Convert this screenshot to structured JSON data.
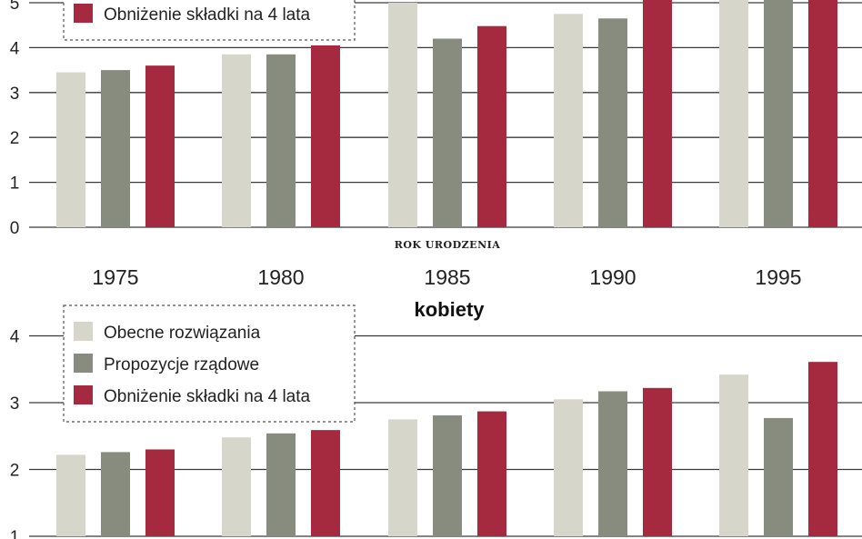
{
  "chart_data": [
    {
      "type": "bar",
      "title": "",
      "xlabel": "ROK URODZENIA",
      "ylabel": "",
      "categories": [
        "1975",
        "1980",
        "1985",
        "1990",
        "1995"
      ],
      "ylim": [
        0,
        5
      ],
      "yticks": [
        0,
        1,
        2,
        3,
        4,
        5
      ],
      "grid": true,
      "legend_position": "top-left",
      "series": [
        {
          "name": "Obecne rozwiązania",
          "color": "#d6d6cb",
          "values": [
            3.45,
            3.85,
            5.0,
            4.75,
            5.2
          ]
        },
        {
          "name": "Propozycje rządowe",
          "color": "#878c7e",
          "values": [
            3.5,
            3.85,
            4.2,
            4.65,
            5.2
          ]
        },
        {
          "name": "Obniżenie składki na 4 lata",
          "color": "#a52a40",
          "values": [
            3.6,
            4.05,
            4.48,
            5.1,
            5.2
          ]
        }
      ],
      "legend_visible": [
        "Obniżenie składki na 4 lata"
      ]
    },
    {
      "type": "bar",
      "title": "kobiety",
      "xlabel": "",
      "ylabel": "",
      "categories": [
        "1975",
        "1980",
        "1985",
        "1990",
        "1995"
      ],
      "ylim": [
        1,
        4
      ],
      "yticks": [
        1,
        2,
        3,
        4
      ],
      "grid": true,
      "legend_position": "top-left",
      "series": [
        {
          "name": "Obecne rozwiązania",
          "color": "#d6d6cb",
          "values": [
            2.22,
            2.48,
            2.75,
            3.05,
            3.42
          ]
        },
        {
          "name": "Propozycje rządowe",
          "color": "#878c7e",
          "values": [
            2.26,
            2.54,
            2.81,
            3.17,
            2.77
          ]
        },
        {
          "name": "Obniżenie składki na 4 lata",
          "color": "#a52a40",
          "values": [
            2.3,
            2.59,
            2.87,
            3.22,
            3.61
          ]
        }
      ],
      "legend_visible": [
        "Obecne rozwiązania",
        "Propozycje rządowe",
        "Obniżenie składki na 4 lata"
      ]
    }
  ]
}
